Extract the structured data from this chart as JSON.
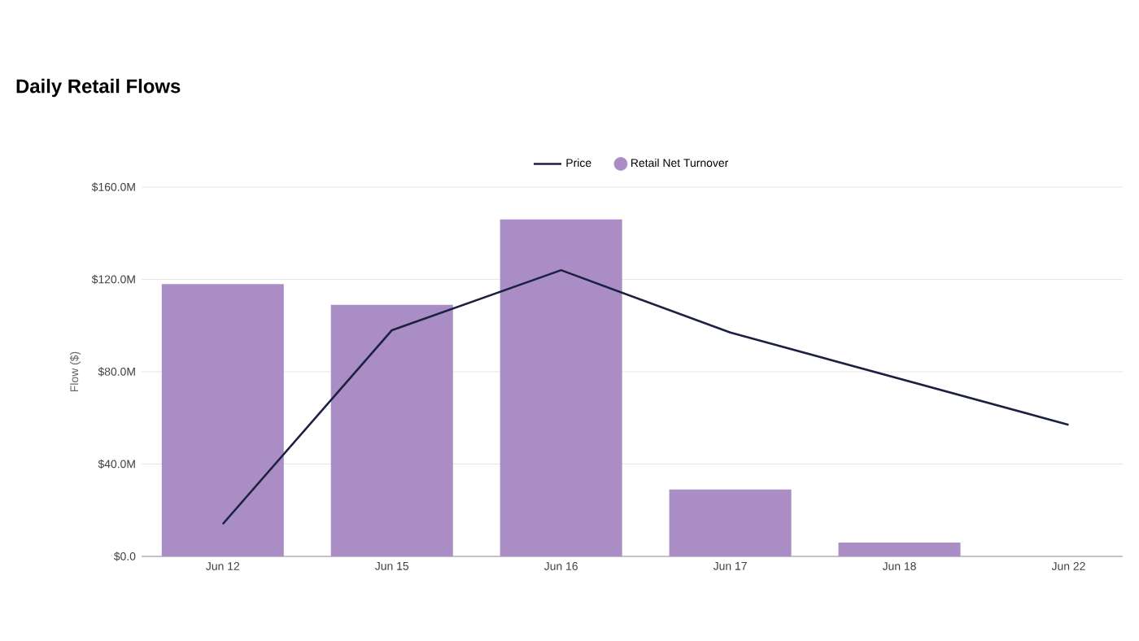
{
  "chart_data": {
    "type": "bar",
    "title": "Daily Retail Flows",
    "ylabel": "Flow ($)",
    "categories": [
      "Jun 12",
      "Jun 15",
      "Jun 16",
      "Jun 17",
      "Jun 18",
      "Jun 22"
    ],
    "series": [
      {
        "name": "Price",
        "type": "line",
        "color": "#1c2140",
        "values": [
          14,
          98,
          124,
          97,
          77,
          57
        ]
      },
      {
        "name": "Retail Net Turnover",
        "color": "#a98dc4",
        "values": [
          118,
          109,
          146,
          29,
          6,
          null
        ]
      }
    ],
    "ylim": [
      0,
      160
    ],
    "yticks": [
      {
        "value": 0,
        "label": "$0.0"
      },
      {
        "value": 40,
        "label": "$40.0M"
      },
      {
        "value": 80,
        "label": "$80.0M"
      },
      {
        "value": 120,
        "label": "$120.0M"
      },
      {
        "value": 160,
        "label": "$160.0M"
      }
    ],
    "grid": "y",
    "legend": "top"
  }
}
